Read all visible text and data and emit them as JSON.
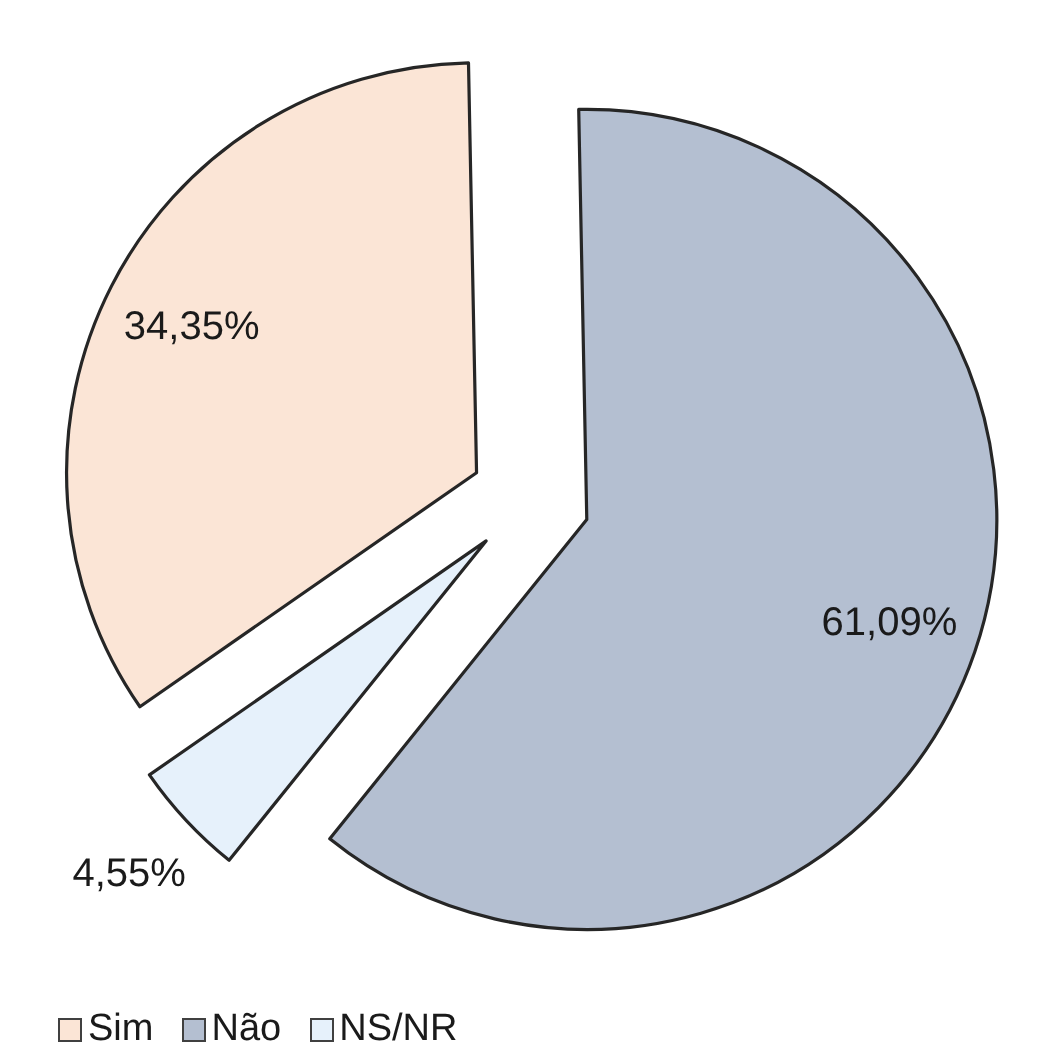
{
  "chart_data": {
    "type": "pie",
    "categories": [
      "Sim",
      "Não",
      "NS/NR"
    ],
    "values": [
      34.35,
      61.09,
      4.55
    ],
    "colors": [
      "#fbe5d6",
      "#b4bfd1",
      "#e6f1fb"
    ],
    "value_labels": [
      "34,35%",
      "61,09%",
      "4,55%"
    ],
    "legend": "bottom left"
  }
}
